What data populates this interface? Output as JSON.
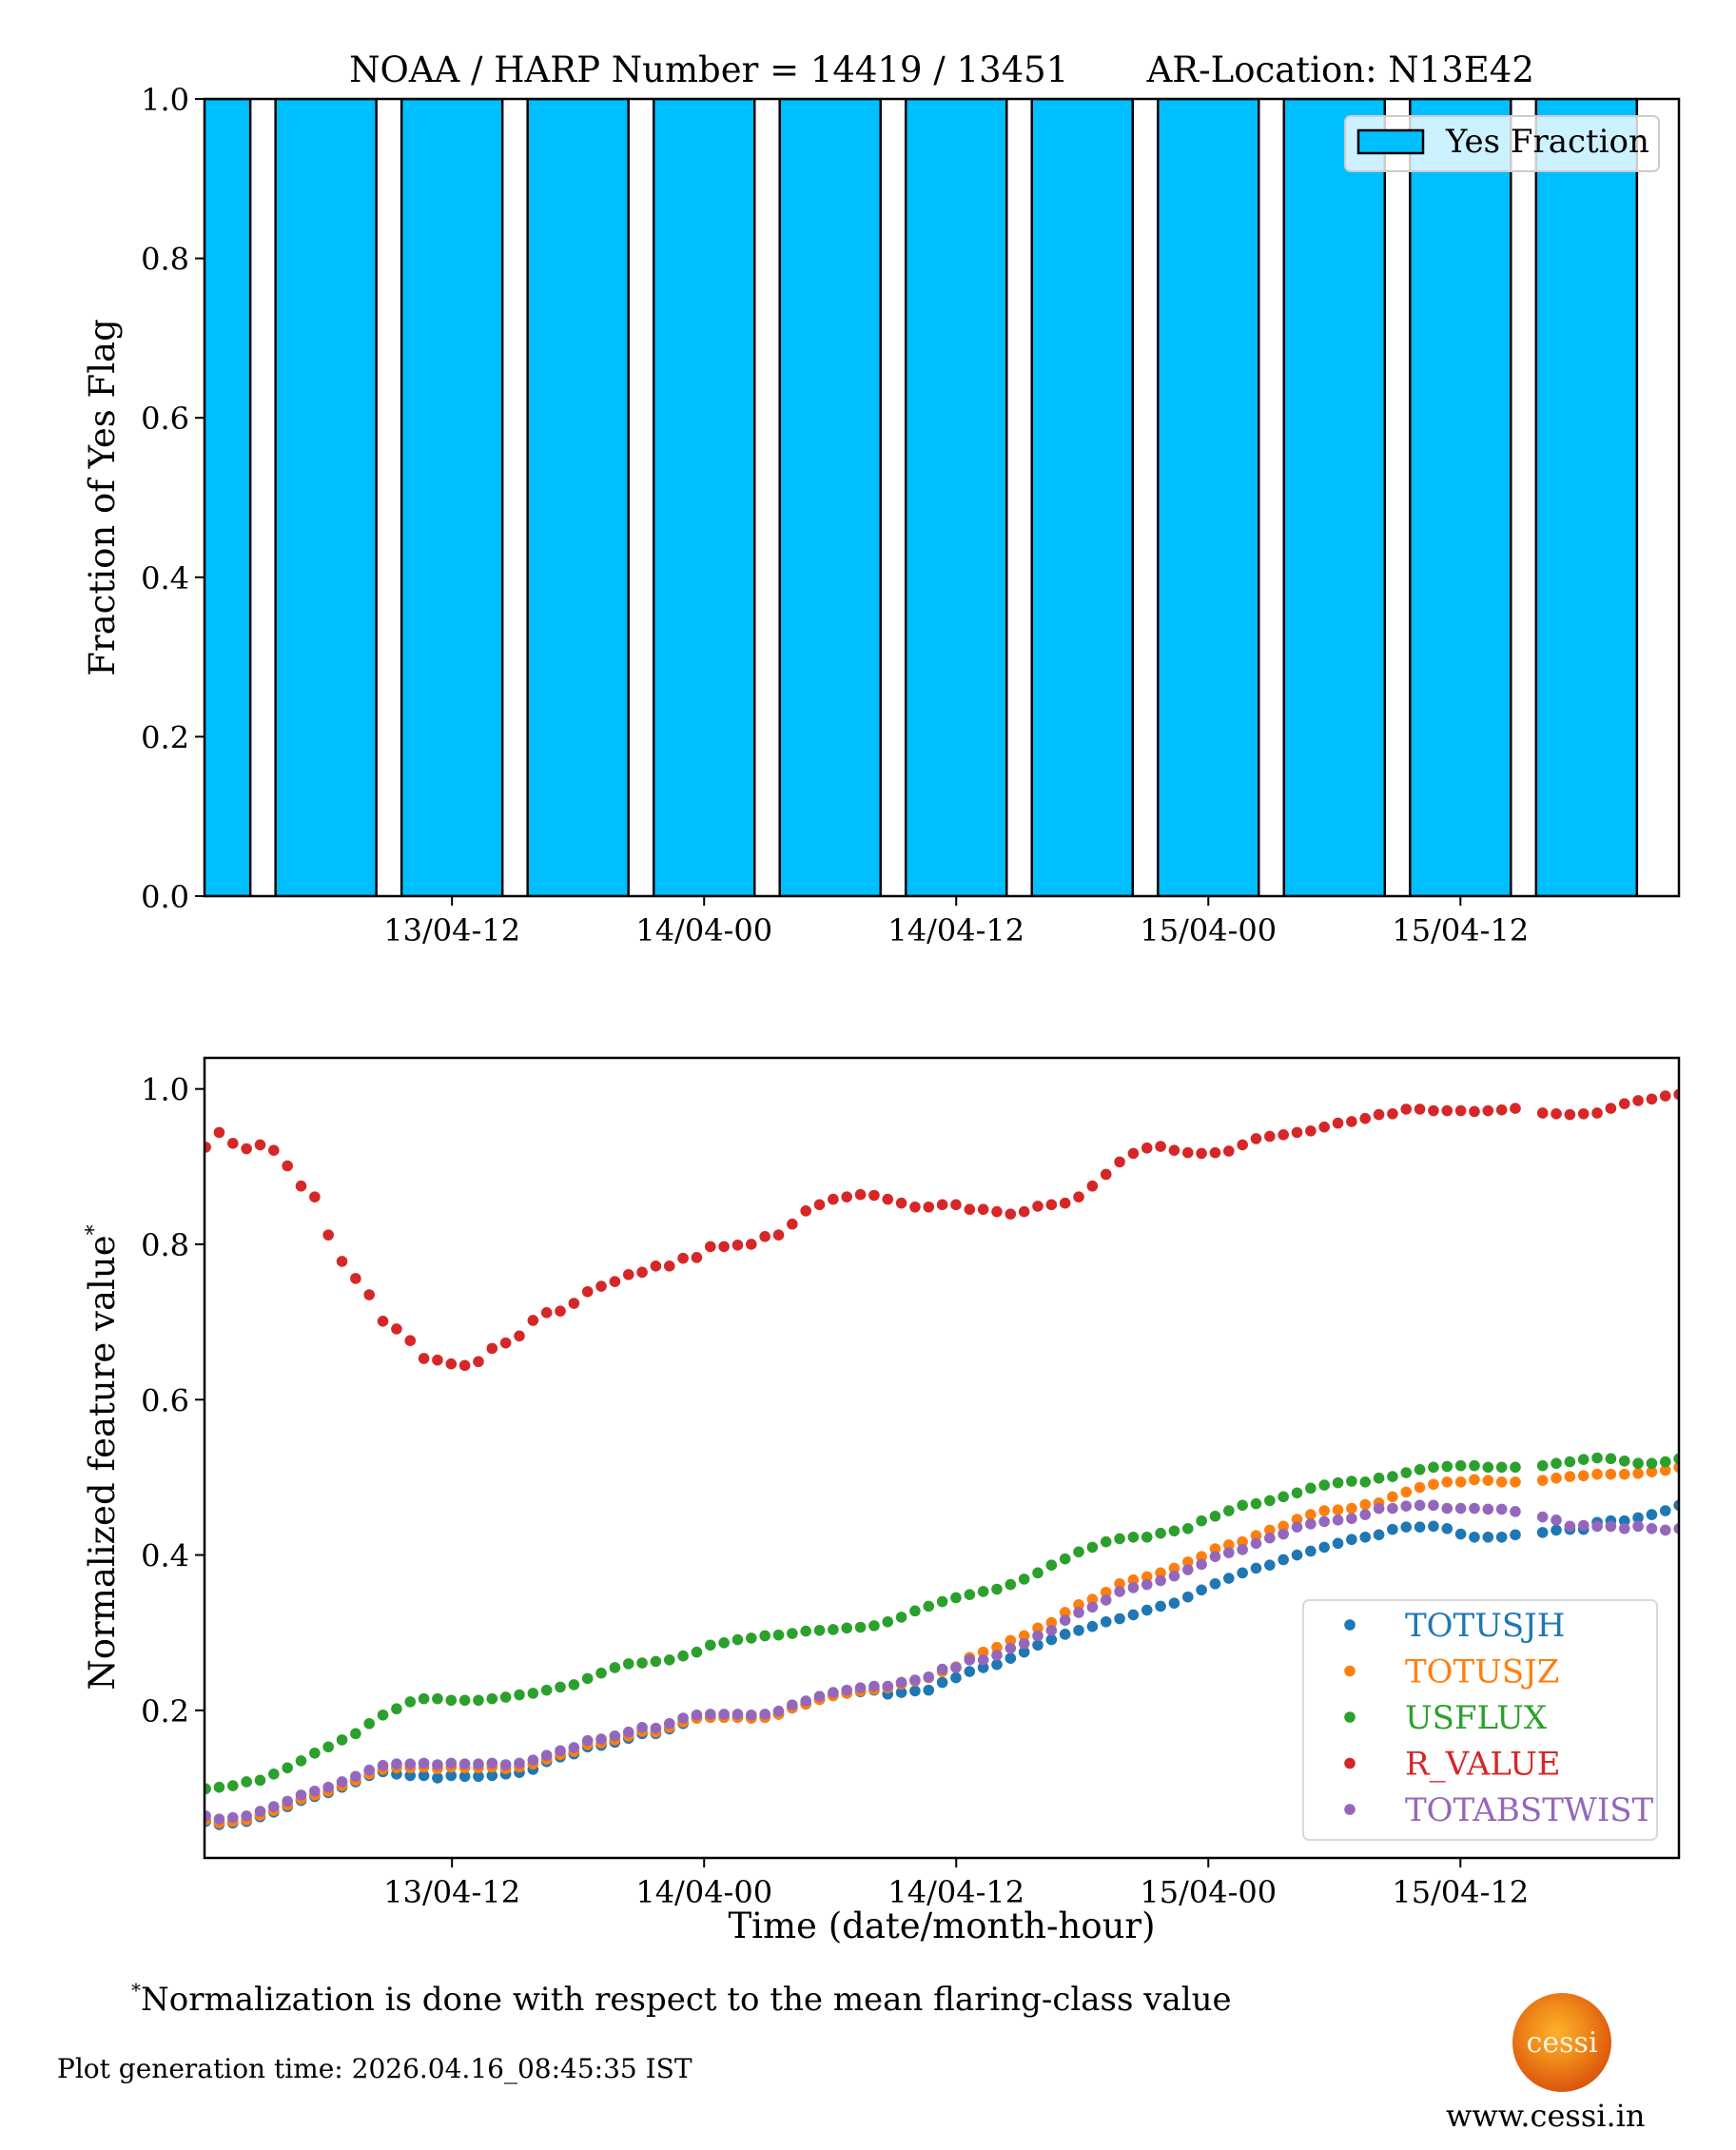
{
  "figure": {
    "footnote_marker": "*",
    "footnote_text": "Normalization is done with respect to the mean flaring-class value",
    "generation_time": "Plot generation time: 2026.04.16_08:45:35 IST",
    "logo_text": "cessi",
    "website": "www.cessi.in"
  },
  "chart_data": [
    {
      "type": "bar",
      "title": "NOAA / HARP Number = 14419 / 13451       AR-Location: N13E42",
      "xlabel": "",
      "ylabel": "Fraction of Yes Flag",
      "time_origin": "13/04-00",
      "x_units": "hours since 13/04-00",
      "xlim": [
        0.22,
        70.4
      ],
      "ylim": [
        0,
        1.0
      ],
      "yticks": [
        0.0,
        0.2,
        0.4,
        0.6,
        0.8,
        1.0
      ],
      "ytick_labels": [
        "0.0",
        "0.2",
        "0.4",
        "0.6",
        "0.8",
        "1.0"
      ],
      "xticks": [
        12,
        24,
        36,
        48,
        60
      ],
      "xtick_labels": [
        "13/04-12",
        "14/04-00",
        "14/04-12",
        "15/04-00",
        "15/04-12"
      ],
      "bar_width_hours": 4.8,
      "bin_hours": 6,
      "categories": [
        0,
        6,
        12,
        18,
        24,
        30,
        36,
        42,
        48,
        54,
        60,
        66
      ],
      "values": [
        1.0,
        1.0,
        1.0,
        1.0,
        1.0,
        1.0,
        1.0,
        1.0,
        1.0,
        1.0,
        1.0,
        1.0
      ],
      "bar_color": "#00bfff",
      "legend": {
        "entries": [
          "Yes Fraction"
        ],
        "placement": "top-right"
      },
      "grid": false
    },
    {
      "type": "scatter",
      "title": "",
      "xlabel": "Time (date/month-hour)",
      "ylabel": "Normalized feature value",
      "ylabel_marker": "*",
      "time_origin": "13/04-00",
      "x_units": "hours since 13/04-00",
      "x_start_hour": 0.27,
      "x_step_hours": 0.6494,
      "xlim": [
        0.22,
        70.4
      ],
      "ylim": [
        0.01,
        1.04
      ],
      "yticks": [
        0.2,
        0.4,
        0.6,
        0.8,
        1.0
      ],
      "ytick_labels": [
        "0.2",
        "0.4",
        "0.6",
        "0.8",
        "1.0"
      ],
      "xticks": [
        12,
        24,
        36,
        48,
        60
      ],
      "xtick_labels": [
        "13/04-12",
        "14/04-00",
        "14/04-12",
        "15/04-00",
        "15/04-12"
      ],
      "legend": {
        "placement": "lower-right"
      },
      "grid": false,
      "series": [
        {
          "name": "TOTUSJH",
          "color": "#1f77b4",
          "values": [
            0.057,
            0.053,
            0.055,
            0.057,
            0.063,
            0.069,
            0.076,
            0.084,
            0.089,
            0.094,
            0.101,
            0.108,
            0.116,
            0.121,
            0.118,
            0.116,
            0.116,
            0.113,
            0.116,
            0.115,
            0.115,
            0.116,
            0.118,
            0.12,
            0.124,
            0.134,
            0.14,
            0.144,
            0.153,
            0.155,
            0.159,
            0.164,
            0.17,
            0.17,
            0.176,
            0.183,
            0.19,
            0.191,
            0.191,
            0.191,
            0.19,
            0.191,
            0.195,
            0.203,
            0.208,
            0.214,
            0.219,
            0.222,
            0.224,
            0.226,
            0.221,
            0.223,
            0.225,
            0.226,
            0.236,
            0.242,
            0.25,
            0.255,
            0.259,
            0.267,
            0.275,
            0.284,
            0.291,
            0.298,
            0.303,
            0.308,
            0.314,
            0.318,
            0.323,
            0.329,
            0.334,
            0.338,
            0.346,
            0.355,
            0.363,
            0.37,
            0.377,
            0.383,
            0.387,
            0.394,
            0.4,
            0.405,
            0.41,
            0.415,
            0.42,
            0.423,
            0.426,
            0.433,
            0.436,
            0.436,
            0.437,
            0.434,
            0.427,
            0.423,
            0.423,
            0.423,
            0.426,
            null,
            0.429,
            0.432,
            0.433,
            0.433,
            0.442,
            0.444,
            0.444,
            0.448,
            0.452,
            0.457,
            0.464
          ]
        },
        {
          "name": "TOTUSJZ",
          "color": "#ff7f0e",
          "values": [
            0.059,
            0.055,
            0.057,
            0.059,
            0.065,
            0.071,
            0.078,
            0.086,
            0.091,
            0.096,
            0.103,
            0.11,
            0.118,
            0.124,
            0.126,
            0.126,
            0.127,
            0.125,
            0.127,
            0.126,
            0.126,
            0.127,
            0.125,
            0.127,
            0.131,
            0.137,
            0.143,
            0.147,
            0.156,
            0.158,
            0.162,
            0.167,
            0.173,
            0.172,
            0.178,
            0.185,
            0.19,
            0.191,
            0.191,
            0.191,
            0.19,
            0.191,
            0.195,
            0.203,
            0.208,
            0.214,
            0.219,
            0.222,
            0.225,
            0.227,
            0.229,
            0.234,
            0.238,
            0.242,
            0.25,
            0.256,
            0.268,
            0.275,
            0.281,
            0.29,
            0.296,
            0.306,
            0.313,
            0.326,
            0.336,
            0.343,
            0.352,
            0.363,
            0.368,
            0.372,
            0.377,
            0.383,
            0.391,
            0.398,
            0.408,
            0.413,
            0.417,
            0.425,
            0.432,
            0.437,
            0.446,
            0.452,
            0.457,
            0.458,
            0.46,
            0.465,
            0.467,
            0.475,
            0.481,
            0.487,
            0.491,
            0.494,
            0.494,
            0.497,
            0.496,
            0.494,
            0.494,
            null,
            0.496,
            0.499,
            0.501,
            0.502,
            0.504,
            0.504,
            0.504,
            0.505,
            0.507,
            0.509,
            0.513
          ]
        },
        {
          "name": "USFLUX",
          "color": "#2ca02c",
          "values": [
            0.099,
            0.101,
            0.103,
            0.108,
            0.11,
            0.118,
            0.126,
            0.135,
            0.145,
            0.153,
            0.162,
            0.17,
            0.183,
            0.194,
            0.202,
            0.211,
            0.215,
            0.215,
            0.213,
            0.213,
            0.213,
            0.215,
            0.217,
            0.22,
            0.222,
            0.226,
            0.23,
            0.233,
            0.241,
            0.248,
            0.255,
            0.26,
            0.261,
            0.263,
            0.265,
            0.27,
            0.275,
            0.284,
            0.287,
            0.291,
            0.293,
            0.296,
            0.297,
            0.299,
            0.302,
            0.303,
            0.304,
            0.306,
            0.307,
            0.309,
            0.314,
            0.32,
            0.328,
            0.334,
            0.34,
            0.345,
            0.349,
            0.353,
            0.356,
            0.362,
            0.369,
            0.377,
            0.387,
            0.395,
            0.404,
            0.41,
            0.417,
            0.421,
            0.423,
            0.423,
            0.428,
            0.431,
            0.434,
            0.444,
            0.45,
            0.457,
            0.464,
            0.466,
            0.47,
            0.475,
            0.48,
            0.486,
            0.49,
            0.493,
            0.495,
            0.494,
            0.499,
            0.501,
            0.506,
            0.51,
            0.513,
            0.514,
            0.515,
            0.515,
            0.513,
            0.513,
            0.513,
            null,
            0.515,
            0.518,
            0.52,
            0.523,
            0.525,
            0.524,
            0.521,
            0.518,
            0.518,
            0.52,
            0.524
          ]
        },
        {
          "name": "R_VALUE",
          "color": "#d62728",
          "values": [
            0.925,
            0.944,
            0.93,
            0.923,
            0.928,
            0.921,
            0.901,
            0.875,
            0.861,
            0.812,
            0.778,
            0.756,
            0.735,
            0.701,
            0.691,
            0.676,
            0.653,
            0.651,
            0.646,
            0.644,
            0.649,
            0.666,
            0.673,
            0.682,
            0.702,
            0.712,
            0.714,
            0.724,
            0.739,
            0.746,
            0.752,
            0.761,
            0.764,
            0.772,
            0.772,
            0.782,
            0.783,
            0.797,
            0.797,
            0.799,
            0.8,
            0.81,
            0.812,
            0.826,
            0.843,
            0.851,
            0.858,
            0.861,
            0.864,
            0.863,
            0.858,
            0.853,
            0.848,
            0.848,
            0.851,
            0.851,
            0.845,
            0.845,
            0.842,
            0.839,
            0.842,
            0.849,
            0.851,
            0.853,
            0.861,
            0.875,
            0.89,
            0.906,
            0.917,
            0.924,
            0.926,
            0.921,
            0.918,
            0.917,
            0.918,
            0.92,
            0.928,
            0.936,
            0.939,
            0.941,
            0.944,
            0.946,
            0.951,
            0.956,
            0.958,
            0.962,
            0.967,
            0.968,
            0.974,
            0.974,
            0.972,
            0.972,
            0.972,
            0.971,
            0.972,
            0.973,
            0.975,
            null,
            0.969,
            0.968,
            0.967,
            0.968,
            0.969,
            0.975,
            0.981,
            0.985,
            0.987,
            0.991,
            0.993
          ]
        },
        {
          "name": "TOTABSTWIST",
          "color": "#9467bd",
          "values": [
            0.064,
            0.06,
            0.062,
            0.064,
            0.07,
            0.076,
            0.083,
            0.091,
            0.096,
            0.101,
            0.108,
            0.115,
            0.123,
            0.129,
            0.131,
            0.131,
            0.132,
            0.13,
            0.132,
            0.131,
            0.131,
            0.132,
            0.13,
            0.132,
            0.136,
            0.142,
            0.148,
            0.152,
            0.161,
            0.163,
            0.167,
            0.172,
            0.178,
            0.177,
            0.183,
            0.19,
            0.194,
            0.195,
            0.195,
            0.195,
            0.194,
            0.195,
            0.199,
            0.207,
            0.212,
            0.218,
            0.223,
            0.226,
            0.229,
            0.231,
            0.231,
            0.236,
            0.239,
            0.243,
            0.253,
            0.255,
            0.265,
            0.265,
            0.271,
            0.28,
            0.286,
            0.296,
            0.303,
            0.316,
            0.326,
            0.333,
            0.342,
            0.353,
            0.358,
            0.362,
            0.367,
            0.373,
            0.381,
            0.388,
            0.398,
            0.403,
            0.407,
            0.415,
            0.422,
            0.427,
            0.436,
            0.44,
            0.443,
            0.445,
            0.447,
            0.452,
            0.46,
            0.46,
            0.463,
            0.464,
            0.464,
            0.46,
            0.46,
            0.46,
            0.459,
            0.459,
            0.456,
            null,
            0.449,
            0.445,
            0.437,
            0.438,
            0.437,
            0.437,
            0.434,
            0.437,
            0.434,
            0.432,
            0.434
          ]
        }
      ]
    }
  ]
}
